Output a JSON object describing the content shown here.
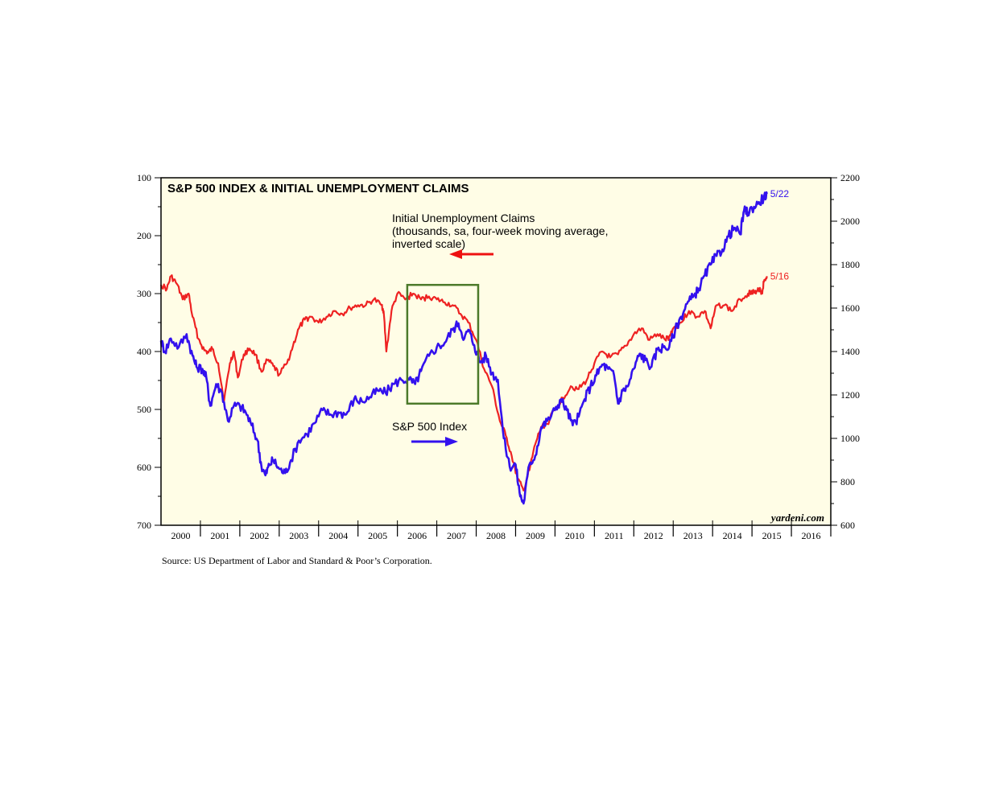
{
  "chart_data": {
    "type": "line",
    "title": "S&P 500 INDEX & INITIAL UNEMPLOYMENT CLAIMS",
    "x_axis": {
      "range": [
        2000,
        2017
      ],
      "tick_labels": [
        "2000",
        "2001",
        "2002",
        "2003",
        "2004",
        "2005",
        "2006",
        "2007",
        "2008",
        "2009",
        "2010",
        "2011",
        "2012",
        "2013",
        "2014",
        "2015",
        "2016"
      ]
    },
    "left_axis": {
      "label": "Initial Unemployment Claims (thousands, inverted)",
      "range": [
        100,
        700
      ],
      "inverted": true,
      "ticks": [
        "100",
        "200",
        "300",
        "400",
        "500",
        "600",
        "700"
      ]
    },
    "right_axis": {
      "label": "S&P 500 Index",
      "range": [
        600,
        2200
      ],
      "ticks": [
        "600",
        "800",
        "1000",
        "1200",
        "1400",
        "1600",
        "1800",
        "2000",
        "2200"
      ]
    },
    "series": [
      {
        "name": "Initial Unemployment Claims",
        "axis": "left",
        "color": "#ee2222",
        "end_label": "5/16",
        "x": [
          2000.0,
          2000.15,
          2000.25,
          2000.4,
          2000.55,
          2000.7,
          2000.8,
          2000.95,
          2001.1,
          2001.2,
          2001.3,
          2001.45,
          2001.6,
          2001.75,
          2001.85,
          2001.95,
          2002.1,
          2002.25,
          2002.4,
          2002.55,
          2002.7,
          2002.85,
          2003.0,
          2003.2,
          2003.35,
          2003.5,
          2003.65,
          2003.8,
          2004.0,
          2004.2,
          2004.4,
          2004.6,
          2004.8,
          2005.0,
          2005.2,
          2005.4,
          2005.6,
          2005.65,
          2005.72,
          2005.85,
          2006.0,
          2006.2,
          2006.4,
          2006.6,
          2006.8,
          2007.0,
          2007.2,
          2007.4,
          2007.6,
          2007.8,
          2008.0,
          2008.2,
          2008.4,
          2008.6,
          2008.75,
          2008.9,
          2009.05,
          2009.2,
          2009.35,
          2009.5,
          2009.65,
          2009.8,
          2010.0,
          2010.2,
          2010.4,
          2010.6,
          2010.8,
          2011.0,
          2011.2,
          2011.4,
          2011.6,
          2011.8,
          2012.0,
          2012.2,
          2012.4,
          2012.6,
          2012.8,
          2012.9,
          2013.0,
          2013.2,
          2013.4,
          2013.6,
          2013.8,
          2013.95,
          2014.1,
          2014.3,
          2014.5,
          2014.7,
          2014.9,
          2015.0,
          2015.1,
          2015.2,
          2015.25,
          2015.3,
          2015.38
        ],
        "y": [
          285,
          292,
          270,
          283,
          310,
          300,
          340,
          378,
          398,
          402,
          395,
          420,
          485,
          420,
          400,
          445,
          405,
          395,
          405,
          435,
          415,
          425,
          440,
          420,
          390,
          360,
          345,
          340,
          350,
          340,
          330,
          335,
          325,
          320,
          320,
          310,
          320,
          330,
          400,
          330,
          300,
          310,
          300,
          310,
          305,
          310,
          315,
          320,
          335,
          350,
          380,
          430,
          460,
          520,
          545,
          580,
          620,
          640,
          605,
          560,
          530,
          525,
          500,
          480,
          460,
          465,
          450,
          420,
          400,
          410,
          405,
          390,
          370,
          360,
          380,
          370,
          380,
          375,
          360,
          350,
          330,
          340,
          330,
          360,
          320,
          320,
          330,
          310,
          300,
          295,
          300,
          290,
          300,
          280,
          270
        ]
      },
      {
        "name": "S&P 500 Index",
        "axis": "right",
        "color": "#3311ee",
        "end_label": "5/22",
        "x": [
          2000.0,
          2000.1,
          2000.25,
          2000.45,
          2000.65,
          2000.8,
          2000.9,
          2001.05,
          2001.15,
          2001.25,
          2001.4,
          2001.55,
          2001.7,
          2001.85,
          2002.0,
          2002.15,
          2002.3,
          2002.45,
          2002.55,
          2002.65,
          2002.75,
          2002.85,
          2003.0,
          2003.15,
          2003.3,
          2003.5,
          2003.7,
          2003.9,
          2004.1,
          2004.3,
          2004.5,
          2004.7,
          2004.9,
          2005.1,
          2005.3,
          2005.5,
          2005.7,
          2005.9,
          2006.1,
          2006.3,
          2006.45,
          2006.6,
          2006.8,
          2007.0,
          2007.2,
          2007.4,
          2007.55,
          2007.7,
          2007.8,
          2007.95,
          2008.1,
          2008.25,
          2008.4,
          2008.55,
          2008.7,
          2008.85,
          2009.0,
          2009.1,
          2009.2,
          2009.35,
          2009.5,
          2009.65,
          2009.8,
          2010.0,
          2010.15,
          2010.3,
          2010.45,
          2010.6,
          2010.75,
          2010.9,
          2011.05,
          2011.2,
          2011.35,
          2011.5,
          2011.6,
          2011.72,
          2011.85,
          2012.0,
          2012.15,
          2012.3,
          2012.45,
          2012.6,
          2012.75,
          2012.9,
          2013.05,
          2013.2,
          2013.35,
          2013.5,
          2013.65,
          2013.8,
          2013.95,
          2014.1,
          2014.25,
          2014.4,
          2014.55,
          2014.7,
          2014.8,
          2014.9,
          2015.0,
          2015.15,
          2015.3,
          2015.38
        ],
        "y": [
          1450,
          1400,
          1460,
          1420,
          1480,
          1380,
          1330,
          1320,
          1280,
          1150,
          1250,
          1210,
          1080,
          1150,
          1150,
          1120,
          1060,
          990,
          870,
          830,
          880,
          900,
          860,
          840,
          900,
          990,
          1020,
          1070,
          1130,
          1110,
          1120,
          1110,
          1180,
          1170,
          1190,
          1220,
          1210,
          1250,
          1270,
          1270,
          1250,
          1310,
          1380,
          1420,
          1440,
          1500,
          1530,
          1460,
          1500,
          1430,
          1350,
          1380,
          1300,
          1270,
          1000,
          870,
          880,
          750,
          700,
          880,
          920,
          1050,
          1080,
          1130,
          1180,
          1130,
          1060,
          1100,
          1180,
          1240,
          1290,
          1340,
          1320,
          1290,
          1160,
          1220,
          1240,
          1320,
          1390,
          1360,
          1330,
          1410,
          1420,
          1420,
          1500,
          1560,
          1620,
          1650,
          1690,
          1750,
          1800,
          1840,
          1870,
          1930,
          1970,
          1940,
          2050,
          2040,
          2060,
          2080,
          2110,
          2126
        ]
      }
    ],
    "annotations": {
      "claims_label": [
        "Initial Unemployment Claims",
        "(thousands, sa, four-week moving average,",
        "inverted scale)"
      ],
      "sp_label": "S&P 500 Index",
      "highlight_box": {
        "x_start": 2006.25,
        "x_end": 2008.05,
        "y_top_claims": 285,
        "y_bottom_claims": 490
      }
    },
    "brand": "yardeni.com",
    "source": "Source: US Department of Labor and Standard & Poor’s Corporation.",
    "colors": {
      "plot_bg": "#fffde6",
      "claims": "#ee2222",
      "sp500": "#3311ee",
      "box": "#4c7a2a",
      "arrow_red": "#ee1111",
      "arrow_blue": "#3311ee"
    }
  }
}
